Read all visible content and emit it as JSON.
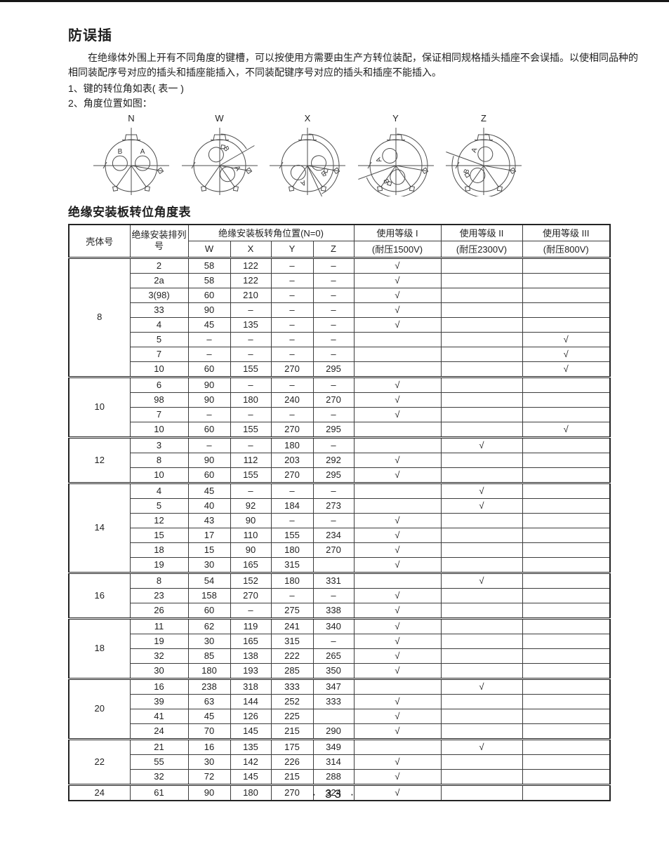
{
  "page": {
    "title": "防误插",
    "paragraph": "在绝缘体外围上开有不同角度的键槽，可以按使用方需要由生产方转位装配，保证相同规格插头插座不会误插。以使相同品种的相同装配序号对应的插头和插座能插入，不同装配键序号对应的插头和插座不能插入。",
    "list_items": [
      "1、键的转位角如表( 表一 )",
      "2、角度位置如图："
    ],
    "page_number": "· 33 ·"
  },
  "diagrams": {
    "items": [
      {
        "label": "N",
        "angle": 0
      },
      {
        "label": "W",
        "angle": 60
      },
      {
        "label": "X",
        "angle": 155
      },
      {
        "label": "Y",
        "angle": 250
      },
      {
        "label": "Z",
        "angle": 290
      }
    ]
  },
  "table": {
    "title": "绝缘安装板转位角度表",
    "check_mark": "√",
    "headers": {
      "shell": "壳体号",
      "arrangement": "绝缘安装排列号",
      "position_group": "绝缘安装板转角位置(N=0)",
      "position_cols": [
        "W",
        "X",
        "Y",
        "Z"
      ],
      "grades": [
        {
          "label": "使用等级 I",
          "sub": "(耐压1500V)"
        },
        {
          "label": "使用等级 II",
          "sub": "(耐压2300V)"
        },
        {
          "label": "使用等级 III",
          "sub": "(耐压800V)"
        }
      ]
    },
    "groups": [
      {
        "shell": "8",
        "rows": [
          {
            "id": "2",
            "pos": [
              "58",
              "122",
              "–",
              "–"
            ],
            "grades": [
              1,
              0,
              0
            ]
          },
          {
            "id": "2a",
            "pos": [
              "58",
              "122",
              "–",
              "–"
            ],
            "grades": [
              1,
              0,
              0
            ]
          },
          {
            "id": "3(98)",
            "pos": [
              "60",
              "210",
              "–",
              "–"
            ],
            "grades": [
              1,
              0,
              0
            ]
          },
          {
            "id": "33",
            "pos": [
              "90",
              "–",
              "–",
              "–"
            ],
            "grades": [
              1,
              0,
              0
            ]
          },
          {
            "id": "4",
            "pos": [
              "45",
              "135",
              "–",
              "–"
            ],
            "grades": [
              1,
              0,
              0
            ]
          },
          {
            "id": "5",
            "pos": [
              "–",
              "–",
              "–",
              "–"
            ],
            "grades": [
              0,
              0,
              1
            ]
          },
          {
            "id": "7",
            "pos": [
              "–",
              "–",
              "–",
              "–"
            ],
            "grades": [
              0,
              0,
              1
            ]
          },
          {
            "id": "10",
            "pos": [
              "60",
              "155",
              "270",
              "295"
            ],
            "grades": [
              0,
              0,
              1
            ]
          }
        ]
      },
      {
        "shell": "10",
        "rows": [
          {
            "id": "6",
            "pos": [
              "90",
              "–",
              "–",
              "–"
            ],
            "grades": [
              1,
              0,
              0
            ]
          },
          {
            "id": "98",
            "pos": [
              "90",
              "180",
              "240",
              "270"
            ],
            "grades": [
              1,
              0,
              0
            ]
          },
          {
            "id": "7",
            "pos": [
              "–",
              "–",
              "–",
              "–"
            ],
            "grades": [
              1,
              0,
              0
            ]
          },
          {
            "id": "10",
            "pos": [
              "60",
              "155",
              "270",
              "295"
            ],
            "grades": [
              0,
              0,
              1
            ]
          }
        ]
      },
      {
        "shell": "12",
        "rows": [
          {
            "id": "3",
            "pos": [
              "–",
              "–",
              "180",
              "–"
            ],
            "grades": [
              0,
              1,
              0
            ]
          },
          {
            "id": "8",
            "pos": [
              "90",
              "112",
              "203",
              "292"
            ],
            "grades": [
              1,
              0,
              0
            ]
          },
          {
            "id": "10",
            "pos": [
              "60",
              "155",
              "270",
              "295"
            ],
            "grades": [
              1,
              0,
              0
            ]
          }
        ]
      },
      {
        "shell": "14",
        "rows": [
          {
            "id": "4",
            "pos": [
              "45",
              "–",
              "–",
              "–"
            ],
            "grades": [
              0,
              1,
              0
            ]
          },
          {
            "id": "5",
            "pos": [
              "40",
              "92",
              "184",
              "273"
            ],
            "grades": [
              0,
              1,
              0
            ]
          },
          {
            "id": "12",
            "pos": [
              "43",
              "90",
              "–",
              "–"
            ],
            "grades": [
              1,
              0,
              0
            ]
          },
          {
            "id": "15",
            "pos": [
              "17",
              "110",
              "155",
              "234"
            ],
            "grades": [
              1,
              0,
              0
            ]
          },
          {
            "id": "18",
            "pos": [
              "15",
              "90",
              "180",
              "270"
            ],
            "grades": [
              1,
              0,
              0
            ]
          },
          {
            "id": "19",
            "pos": [
              "30",
              "165",
              "315",
              ""
            ],
            "grades": [
              1,
              0,
              0
            ]
          }
        ]
      },
      {
        "shell": "16",
        "rows": [
          {
            "id": "8",
            "pos": [
              "54",
              "152",
              "180",
              "331"
            ],
            "grades": [
              0,
              1,
              0
            ]
          },
          {
            "id": "23",
            "pos": [
              "158",
              "270",
              "–",
              "–"
            ],
            "grades": [
              1,
              0,
              0
            ]
          },
          {
            "id": "26",
            "pos": [
              "60",
              "–",
              "275",
              "338"
            ],
            "grades": [
              1,
              0,
              0
            ]
          }
        ]
      },
      {
        "shell": "18",
        "rows": [
          {
            "id": "11",
            "pos": [
              "62",
              "119",
              "241",
              "340"
            ],
            "grades": [
              1,
              0,
              0
            ]
          },
          {
            "id": "19",
            "pos": [
              "30",
              "165",
              "315",
              "–"
            ],
            "grades": [
              1,
              0,
              0
            ]
          },
          {
            "id": "32",
            "pos": [
              "85",
              "138",
              "222",
              "265"
            ],
            "grades": [
              1,
              0,
              0
            ]
          },
          {
            "id": "30",
            "pos": [
              "180",
              "193",
              "285",
              "350"
            ],
            "grades": [
              1,
              0,
              0
            ]
          }
        ]
      },
      {
        "shell": "20",
        "rows": [
          {
            "id": "16",
            "pos": [
              "238",
              "318",
              "333",
              "347"
            ],
            "grades": [
              0,
              1,
              0
            ]
          },
          {
            "id": "39",
            "pos": [
              "63",
              "144",
              "252",
              "333"
            ],
            "grades": [
              1,
              0,
              0
            ]
          },
          {
            "id": "41",
            "pos": [
              "45",
              "126",
              "225",
              ""
            ],
            "grades": [
              1,
              0,
              0
            ]
          },
          {
            "id": "24",
            "pos": [
              "70",
              "145",
              "215",
              "290"
            ],
            "grades": [
              1,
              0,
              0
            ]
          }
        ]
      },
      {
        "shell": "22",
        "rows": [
          {
            "id": "21",
            "pos": [
              "16",
              "135",
              "175",
              "349"
            ],
            "grades": [
              0,
              1,
              0
            ]
          },
          {
            "id": "55",
            "pos": [
              "30",
              "142",
              "226",
              "314"
            ],
            "grades": [
              1,
              0,
              0
            ]
          },
          {
            "id": "32",
            "pos": [
              "72",
              "145",
              "215",
              "288"
            ],
            "grades": [
              1,
              0,
              0
            ]
          }
        ]
      },
      {
        "shell": "24",
        "rows": [
          {
            "id": "61",
            "pos": [
              "90",
              "180",
              "270",
              "324"
            ],
            "grades": [
              1,
              0,
              0
            ]
          }
        ]
      }
    ]
  }
}
